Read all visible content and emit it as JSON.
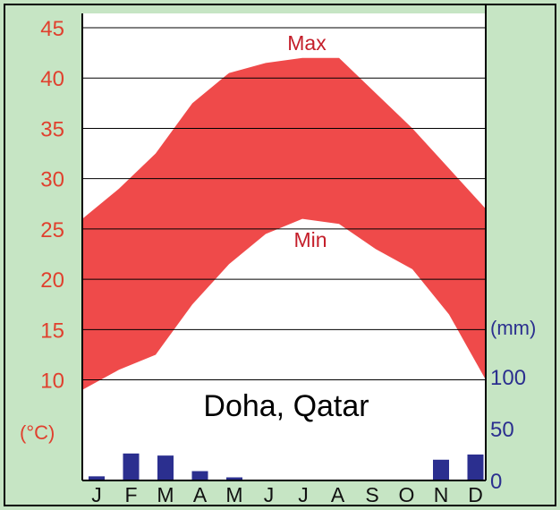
{
  "colors": {
    "background": "#c6e5c4",
    "temperature_band": "#ef4a4a",
    "temperature_axis_text": "#e0402e",
    "precipitation_bars": "#2b2f8f",
    "precipitation_axis_text": "#2b2f8f",
    "gridline": "#000000"
  },
  "chart_data": {
    "type": "area",
    "title": "Doha, Qatar",
    "months": [
      "J",
      "F",
      "M",
      "A",
      "M",
      "J",
      "J",
      "A",
      "S",
      "O",
      "N",
      "D"
    ],
    "temperature": {
      "unit_label": "(°C)",
      "ylim": [
        0,
        45
      ],
      "ticks": [
        "10",
        "15",
        "20",
        "25",
        "30",
        "35",
        "40",
        "45"
      ],
      "max_label": "Max",
      "min_label": "Min",
      "max": [
        26.0,
        29.0,
        32.5,
        37.5,
        40.5,
        41.5,
        42.0,
        42.0,
        38.5,
        35.0,
        31.0,
        27.0
      ],
      "min": [
        9.0,
        11.0,
        12.5,
        17.5,
        21.5,
        24.5,
        26.0,
        25.5,
        23.0,
        21.0,
        16.5,
        10.0
      ]
    },
    "precipitation": {
      "unit_label": "(mm)",
      "ylim": [
        0,
        100
      ],
      "ticks": [
        "0",
        "50",
        "100"
      ],
      "values": [
        4,
        26,
        24,
        9,
        3,
        0,
        0,
        0,
        0,
        0,
        20,
        25
      ]
    },
    "grid": true
  }
}
